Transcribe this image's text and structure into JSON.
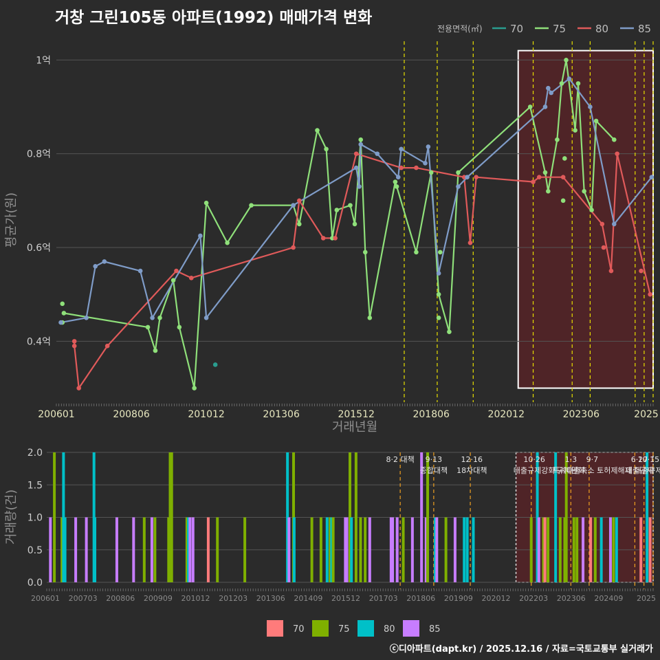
{
  "title": "거창 그린105동 아파트(1992) 매매가격 변화",
  "copyright": "ⓒ디아파트(dapt.kr) / 2025.12.16 / 자료=국토교통부 실거래가",
  "colors": {
    "s70": "#2a9d8f",
    "s75": "#8fe07a",
    "s80": "#e05a5a",
    "s85": "#7f9cc8",
    "v70": "#ff7b7b",
    "v75": "#7fb000",
    "v80": "#00c0c8",
    "v85": "#c77dff",
    "highlight": "#6e1f24",
    "dash": "#e8e000",
    "dash_bottom": "#f0a020"
  },
  "chart_data": [
    {
      "type": "line",
      "title": "거창 그린105동 아파트(1992) 매매가격 변화",
      "xlabel": "거래년월",
      "ylabel": "평균가(원)",
      "xlim": [
        2006.0,
        2025.9
      ],
      "ylim": [
        0.27,
        1.04
      ],
      "x_ticks": [
        2006.0,
        2008.5,
        2011.0,
        2013.5,
        2016.0,
        2018.5,
        2021.0,
        2023.5,
        2025.9
      ],
      "x_tick_labels": [
        "200601",
        "200806",
        "201012",
        "201306",
        "201512",
        "201806",
        "202012",
        "202306",
        "2025"
      ],
      "y_ticks": [
        0.4,
        0.6,
        0.8,
        1.0
      ],
      "y_tick_labels": [
        "0.4억",
        "0.6억",
        "0.8억",
        "1억"
      ],
      "legend_title": "전용면적(㎡)",
      "legend": [
        "70",
        "75",
        "80",
        "85"
      ],
      "highlight_range": [
        2021.4,
        2025.9
      ],
      "highlight_y": [
        0.3,
        1.02
      ],
      "policy_lines": [
        2017.6,
        2018.7,
        2019.9,
        2021.9,
        2023.2,
        2023.8,
        2025.3,
        2025.6,
        2025.9
      ],
      "series": [
        {
          "name": "70",
          "lines": false,
          "points": [
            [
              2011.3,
              0.35
            ]
          ]
        },
        {
          "name": "75",
          "lines": true,
          "points": [
            [
              2006.25,
              0.46
            ],
            [
              2009.05,
              0.43
            ],
            [
              2009.3,
              0.38
            ],
            [
              2009.45,
              0.45
            ],
            [
              2009.9,
              0.53
            ],
            [
              2010.1,
              0.43
            ],
            [
              2010.6,
              0.3
            ],
            [
              2011.0,
              0.695
            ],
            [
              2011.7,
              0.61
            ],
            [
              2012.5,
              0.69
            ],
            [
              2013.9,
              0.69
            ],
            [
              2014.1,
              0.65
            ],
            [
              2014.7,
              0.85
            ],
            [
              2015.0,
              0.81
            ],
            [
              2015.2,
              0.62
            ],
            [
              2015.35,
              0.68
            ],
            [
              2015.8,
              0.69
            ],
            [
              2015.95,
              0.65
            ],
            [
              2016.15,
              0.83
            ],
            [
              2016.3,
              0.59
            ],
            [
              2016.45,
              0.45
            ],
            [
              2017.3,
              0.74
            ],
            [
              2017.35,
              0.73
            ],
            [
              2018.0,
              0.59
            ],
            [
              2018.5,
              0.76
            ],
            [
              2018.75,
              0.5
            ],
            [
              2019.1,
              0.42
            ],
            [
              2019.4,
              0.76
            ],
            [
              2021.8,
              0.9
            ],
            [
              2022.3,
              0.76
            ],
            [
              2022.4,
              0.72
            ],
            [
              2022.7,
              0.83
            ],
            [
              2022.85,
              0.95
            ],
            [
              2023.0,
              1.0
            ],
            [
              2023.3,
              0.85
            ],
            [
              2023.4,
              0.95
            ],
            [
              2023.6,
              0.72
            ],
            [
              2023.85,
              0.68
            ],
            [
              2024.0,
              0.87
            ],
            [
              2024.6,
              0.83
            ]
          ],
          "extra_points": [
            [
              2006.2,
              0.48
            ],
            [
              2006.2,
              0.44
            ],
            [
              2018.75,
              0.45
            ],
            [
              2018.8,
              0.59
            ],
            [
              2022.9,
              0.7
            ],
            [
              2022.95,
              0.79
            ]
          ]
        },
        {
          "name": "80",
          "lines": true,
          "points": [
            [
              2006.6,
              0.4
            ],
            [
              2006.6,
              0.39
            ],
            [
              2006.75,
              0.3
            ],
            [
              2007.7,
              0.39
            ],
            [
              2010.0,
              0.55
            ],
            [
              2010.5,
              0.535
            ],
            [
              2013.9,
              0.6
            ],
            [
              2014.1,
              0.7
            ],
            [
              2014.9,
              0.62
            ],
            [
              2015.3,
              0.62
            ],
            [
              2016.0,
              0.8
            ],
            [
              2017.5,
              0.77
            ],
            [
              2018.0,
              0.77
            ],
            [
              2019.6,
              0.75
            ],
            [
              2019.8,
              0.61
            ],
            [
              2020.0,
              0.75
            ],
            [
              2021.9,
              0.74
            ],
            [
              2022.1,
              0.75
            ],
            [
              2022.9,
              0.75
            ],
            [
              2024.2,
              0.65
            ],
            [
              2024.5,
              0.55
            ],
            [
              2024.7,
              0.8
            ],
            [
              2025.8,
              0.5
            ]
          ],
          "extra_points": [
            [
              2024.25,
              0.6
            ],
            [
              2025.5,
              0.55
            ]
          ]
        },
        {
          "name": "85",
          "lines": true,
          "points": [
            [
              2006.15,
              0.44
            ],
            [
              2007.0,
              0.45
            ],
            [
              2007.3,
              0.56
            ],
            [
              2007.6,
              0.57
            ],
            [
              2008.8,
              0.55
            ],
            [
              2009.2,
              0.45
            ],
            [
              2010.8,
              0.625
            ],
            [
              2011.0,
              0.45
            ],
            [
              2013.9,
              0.69
            ],
            [
              2016.0,
              0.77
            ],
            [
              2016.1,
              0.73
            ],
            [
              2016.15,
              0.82
            ],
            [
              2016.7,
              0.8
            ],
            [
              2017.4,
              0.75
            ],
            [
              2017.5,
              0.81
            ],
            [
              2018.3,
              0.78
            ],
            [
              2018.4,
              0.815
            ],
            [
              2018.75,
              0.545
            ],
            [
              2019.4,
              0.73
            ],
            [
              2019.7,
              0.75
            ],
            [
              2022.3,
              0.9
            ],
            [
              2022.4,
              0.94
            ],
            [
              2022.5,
              0.93
            ],
            [
              2023.1,
              0.96
            ],
            [
              2023.8,
              0.9
            ],
            [
              2024.6,
              0.65
            ],
            [
              2025.85,
              0.75
            ]
          ],
          "extra_points": []
        }
      ]
    },
    {
      "type": "bar",
      "ylabel": "거래량(건)",
      "xlim": [
        2006.0,
        2025.9
      ],
      "ylim": [
        0,
        2
      ],
      "y_ticks": [
        0.0,
        0.5,
        1.0,
        1.5,
        2.0
      ],
      "y_tick_labels": [
        "0.0",
        "0.5",
        "1.0",
        "1.5",
        "2.0"
      ],
      "x_tick_labels": [
        "200601",
        "200703",
        "200806",
        "200909",
        "201012",
        "201203",
        "201306",
        "201409",
        "201512",
        "201703",
        "201806",
        "201909",
        "202012",
        "202203",
        "202306",
        "202409",
        "2025"
      ],
      "policy_labels": [
        {
          "x": 2017.6,
          "lines": [
            "8·2 대책"
          ]
        },
        {
          "x": 2018.7,
          "lines": [
            "9·13",
            "종합대책"
          ]
        },
        {
          "x": 2019.95,
          "lines": [
            "12·16",
            "18차대책"
          ]
        },
        {
          "x": 2022.0,
          "lines": [
            "10·26",
            "대출규제강화"
          ]
        },
        {
          "x": 2023.2,
          "lines": [
            "1·3",
            "규제완화"
          ]
        },
        {
          "x": 2023.9,
          "lines": [
            "9·7",
            "특례대출축소 토허제해제"
          ]
        },
        {
          "x": 2025.45,
          "lines": [
            "6·27",
            "대출규제"
          ]
        },
        {
          "x": 2025.75,
          "lines": [
            "10·15",
            "대출규제"
          ]
        }
      ],
      "bars": [
        {
          "x": 2006.12,
          "v": 1,
          "s": "85"
        },
        {
          "x": 2006.25,
          "v": 2,
          "s": "75"
        },
        {
          "x": 2006.5,
          "v": 1,
          "s": "75"
        },
        {
          "x": 2006.55,
          "v": 2,
          "s": "80"
        },
        {
          "x": 2006.6,
          "v": 1,
          "s": "80"
        },
        {
          "x": 2006.95,
          "v": 1,
          "s": "85"
        },
        {
          "x": 2007.3,
          "v": 1,
          "s": "85"
        },
        {
          "x": 2007.55,
          "v": 2,
          "s": "80"
        },
        {
          "x": 2007.58,
          "v": 1,
          "s": "80"
        },
        {
          "x": 2008.3,
          "v": 1,
          "s": "85"
        },
        {
          "x": 2008.85,
          "v": 1,
          "s": "85"
        },
        {
          "x": 2009.2,
          "v": 1,
          "s": "75"
        },
        {
          "x": 2009.45,
          "v": 1,
          "s": "85"
        },
        {
          "x": 2009.55,
          "v": 1,
          "s": "75"
        },
        {
          "x": 2010.0,
          "v": 1,
          "s": "75"
        },
        {
          "x": 2010.05,
          "v": 2,
          "s": "75"
        },
        {
          "x": 2010.1,
          "v": 2,
          "s": "75"
        },
        {
          "x": 2010.6,
          "v": 1,
          "s": "75"
        },
        {
          "x": 2010.65,
          "v": 1,
          "s": "80"
        },
        {
          "x": 2010.7,
          "v": 1,
          "s": "85"
        },
        {
          "x": 2010.8,
          "v": 1,
          "s": "85"
        },
        {
          "x": 2011.3,
          "v": 1,
          "s": "70"
        },
        {
          "x": 2011.6,
          "v": 1,
          "s": "75"
        },
        {
          "x": 2012.5,
          "v": 1,
          "s": "75"
        },
        {
          "x": 2013.9,
          "v": 2,
          "s": "80"
        },
        {
          "x": 2013.95,
          "v": 1,
          "s": "85"
        },
        {
          "x": 2014.1,
          "v": 2,
          "s": "75"
        },
        {
          "x": 2014.12,
          "v": 1,
          "s": "80"
        },
        {
          "x": 2014.7,
          "v": 1,
          "s": "75"
        },
        {
          "x": 2015.0,
          "v": 1,
          "s": "75"
        },
        {
          "x": 2015.2,
          "v": 1,
          "s": "80"
        },
        {
          "x": 2015.3,
          "v": 1,
          "s": "75"
        },
        {
          "x": 2015.35,
          "v": 1,
          "s": "80"
        },
        {
          "x": 2015.4,
          "v": 1,
          "s": "75"
        },
        {
          "x": 2015.8,
          "v": 1,
          "s": "85"
        },
        {
          "x": 2015.85,
          "v": 1,
          "s": "85"
        },
        {
          "x": 2015.95,
          "v": 2,
          "s": "75"
        },
        {
          "x": 2016.0,
          "v": 1,
          "s": "80"
        },
        {
          "x": 2016.15,
          "v": 2,
          "s": "75"
        },
        {
          "x": 2016.3,
          "v": 1,
          "s": "75"
        },
        {
          "x": 2016.45,
          "v": 1,
          "s": "75"
        },
        {
          "x": 2016.6,
          "v": 1,
          "s": "85"
        },
        {
          "x": 2017.3,
          "v": 1,
          "s": "85"
        },
        {
          "x": 2017.35,
          "v": 1,
          "s": "85"
        },
        {
          "x": 2017.5,
          "v": 1,
          "s": "85"
        },
        {
          "x": 2017.7,
          "v": 1,
          "s": "75"
        },
        {
          "x": 2018.0,
          "v": 1,
          "s": "85"
        },
        {
          "x": 2018.3,
          "v": 2,
          "s": "85"
        },
        {
          "x": 2018.45,
          "v": 1,
          "s": "85"
        },
        {
          "x": 2018.5,
          "v": 2,
          "s": "75"
        },
        {
          "x": 2018.75,
          "v": 1,
          "s": "80"
        },
        {
          "x": 2018.8,
          "v": 1,
          "s": "85"
        },
        {
          "x": 2019.1,
          "v": 1,
          "s": "75"
        },
        {
          "x": 2019.4,
          "v": 1,
          "s": "85"
        },
        {
          "x": 2019.7,
          "v": 1,
          "s": "80"
        },
        {
          "x": 2019.8,
          "v": 1,
          "s": "80"
        },
        {
          "x": 2020.0,
          "v": 1,
          "s": "80"
        },
        {
          "x": 2021.9,
          "v": 1,
          "s": "75"
        },
        {
          "x": 2022.1,
          "v": 2,
          "s": "80"
        },
        {
          "x": 2022.15,
          "v": 1,
          "s": "85"
        },
        {
          "x": 2022.3,
          "v": 1,
          "s": "75"
        },
        {
          "x": 2022.35,
          "v": 1,
          "s": "70"
        },
        {
          "x": 2022.45,
          "v": 1,
          "s": "75"
        },
        {
          "x": 2022.7,
          "v": 2,
          "s": "80"
        },
        {
          "x": 2022.85,
          "v": 1,
          "s": "75"
        },
        {
          "x": 2023.0,
          "v": 1,
          "s": "75"
        },
        {
          "x": 2023.05,
          "v": 2,
          "s": "75"
        },
        {
          "x": 2023.3,
          "v": 1,
          "s": "75"
        },
        {
          "x": 2023.4,
          "v": 1,
          "s": "75"
        },
        {
          "x": 2023.6,
          "v": 1,
          "s": "85"
        },
        {
          "x": 2023.85,
          "v": 1,
          "s": "70"
        },
        {
          "x": 2024.0,
          "v": 1,
          "s": "75"
        },
        {
          "x": 2024.2,
          "v": 1,
          "s": "80"
        },
        {
          "x": 2024.5,
          "v": 1,
          "s": "85"
        },
        {
          "x": 2024.6,
          "v": 1,
          "s": "75"
        },
        {
          "x": 2024.7,
          "v": 1,
          "s": "80"
        },
        {
          "x": 2025.5,
          "v": 1,
          "s": "70"
        },
        {
          "x": 2025.7,
          "v": 2,
          "s": "80"
        },
        {
          "x": 2025.8,
          "v": 1,
          "s": "70"
        }
      ],
      "legend": [
        "70",
        "75",
        "80",
        "85"
      ]
    }
  ]
}
